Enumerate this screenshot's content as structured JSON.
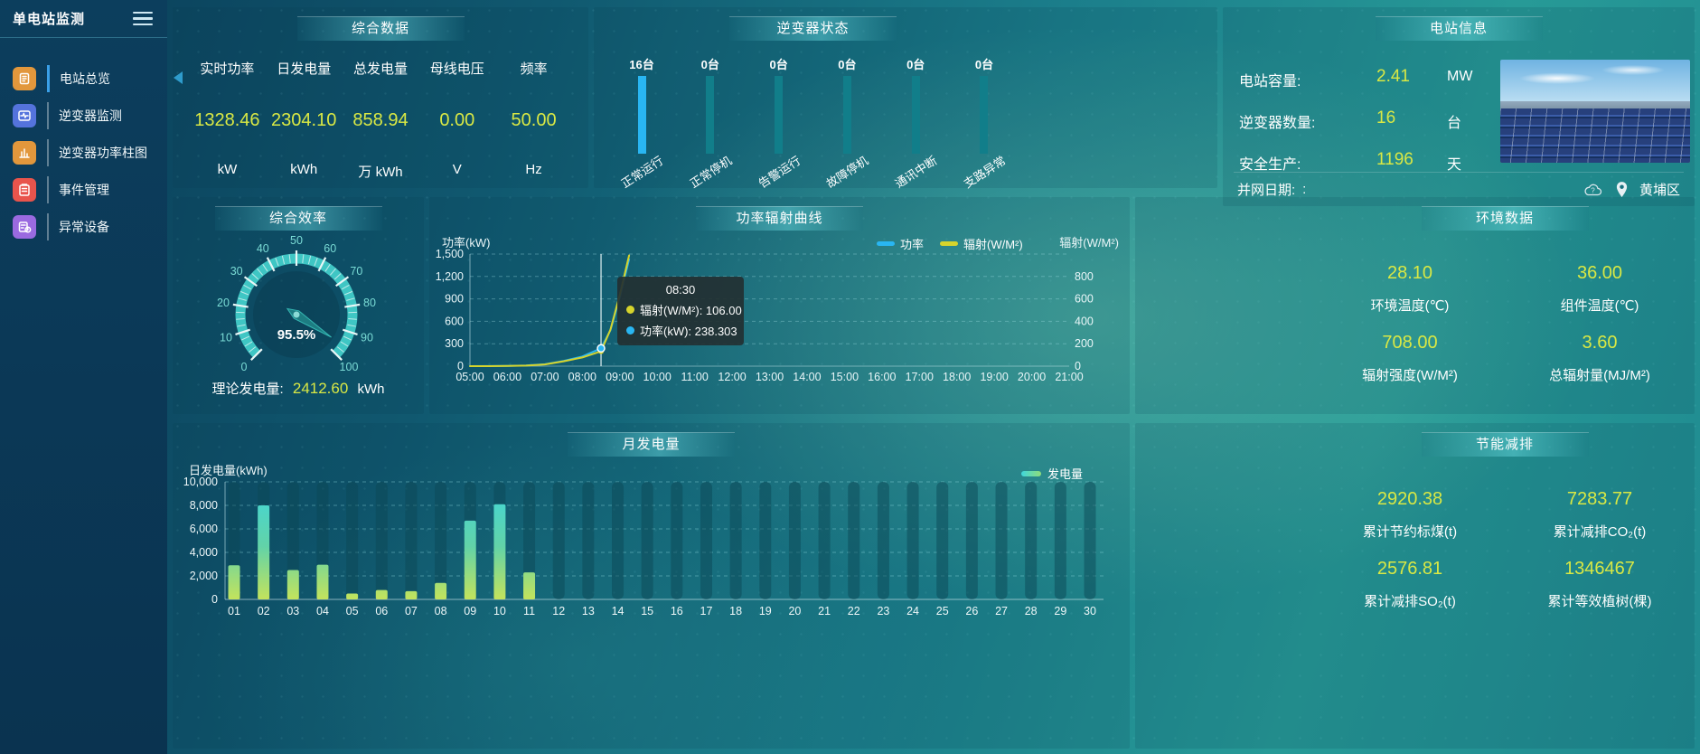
{
  "sidebar": {
    "title": "单电站监测",
    "items": [
      {
        "label": "电站总览",
        "icon": "station-overview-icon",
        "color": "#e2973c",
        "active": true
      },
      {
        "label": "逆变器监测",
        "icon": "inverter-monitor-icon",
        "color": "#5473dc",
        "active": false
      },
      {
        "label": "逆变器功率柱图",
        "icon": "inverter-power-chart-icon",
        "color": "#e2973c",
        "active": false
      },
      {
        "label": "事件管理",
        "icon": "event-management-icon",
        "color": "#e8544c",
        "active": false
      },
      {
        "label": "异常设备",
        "icon": "abnormal-device-icon",
        "color": "#9a6ae0",
        "active": false
      }
    ]
  },
  "panels": {
    "summary": {
      "title": "综合数据",
      "stats": [
        {
          "label": "实时功率",
          "value": "1328.46",
          "unit": "kW"
        },
        {
          "label": "日发电量",
          "value": "2304.10",
          "unit": "kWh"
        },
        {
          "label": "总发电量",
          "value": "858.94",
          "unit": "万 kWh"
        },
        {
          "label": "母线电压",
          "value": "0.00",
          "unit": "V"
        },
        {
          "label": "频率",
          "value": "50.00",
          "unit": "Hz"
        }
      ]
    },
    "inverter_status": {
      "title": "逆变器状态"
    },
    "station_info": {
      "title": "电站信息",
      "rows": [
        {
          "label": "电站容量:",
          "value": "2.41",
          "unit": "MW"
        },
        {
          "label": "逆变器数量:",
          "value": "16",
          "unit": "台"
        },
        {
          "label": "安全生产:",
          "value": "1196",
          "unit": "天"
        }
      ],
      "grid_date_label": "并网日期: ",
      "grid_date_value": ":",
      "location": "黄埔区"
    },
    "efficiency": {
      "title": "综合效率",
      "footer_label": "理论发电量:",
      "footer_value": "2412.60",
      "footer_unit": "kWh"
    },
    "power_curve": {
      "title": "功率辐射曲线"
    },
    "environment": {
      "title": "环境数据",
      "stats": [
        {
          "value": "28.10",
          "label": "环境温度(℃)"
        },
        {
          "value": "36.00",
          "label": "组件温度(℃)"
        },
        {
          "value": "708.00",
          "label": "辐射强度(W/M²)"
        },
        {
          "value": "3.60",
          "label": "总辐射量(MJ/M²)"
        }
      ]
    },
    "monthly": {
      "title": "月发电量"
    },
    "energy_saving": {
      "title": "节能减排",
      "stats": [
        {
          "value": "2920.38",
          "label": "累计节约标煤(t)"
        },
        {
          "value": "7283.77",
          "label": "累计减排CO₂(t)"
        },
        {
          "value": "2576.81",
          "label": "累计减排SO₂(t)"
        },
        {
          "value": "1346467",
          "label": "累计等效植树(棵)"
        }
      ]
    }
  },
  "colors": {
    "accent_yellow": "#d9e844",
    "accent_cyan": "#29b6f2",
    "teal_bar": "#117e8a",
    "gauge_teal": "#3fc6c4"
  },
  "chart_data": [
    {
      "id": "inverter_status",
      "type": "bar",
      "title": "逆变器状态",
      "categories": [
        "正常运行",
        "正常停机",
        "告警运行",
        "故障停机",
        "通讯中断",
        "支路异常"
      ],
      "values": [
        16,
        0,
        0,
        0,
        0,
        0
      ],
      "unit": "台",
      "bar_colors": [
        "#29b6f2",
        "#117e8a",
        "#117e8a",
        "#117e8a",
        "#117e8a",
        "#117e8a"
      ],
      "note": "equal-height status columns with device counts above"
    },
    {
      "id": "efficiency_gauge",
      "type": "gauge",
      "title": "综合效率",
      "value": 95.5,
      "unit": "%",
      "min": 0,
      "max": 100,
      "tick_labels": [
        0,
        10,
        20,
        30,
        40,
        50,
        60,
        70,
        80,
        90,
        100
      ],
      "color": "#3fc6c4"
    },
    {
      "id": "power_radiation",
      "type": "line",
      "title": "功率辐射曲线",
      "x_ticks": [
        "05:00",
        "06:00",
        "07:00",
        "08:00",
        "09:00",
        "10:00",
        "11:00",
        "12:00",
        "13:00",
        "14:00",
        "15:00",
        "16:00",
        "17:00",
        "18:00",
        "19:00",
        "20:00",
        "21:00"
      ],
      "x_range": [
        5,
        21
      ],
      "y_left": {
        "label": "功率(kW)",
        "range": [
          0,
          1500
        ],
        "ticks": [
          "0",
          "300",
          "600",
          "900",
          "1,200",
          "1,500"
        ]
      },
      "y_right": {
        "label": "辐射(W/M²)",
        "range": [
          0,
          800
        ],
        "ticks": [
          "0",
          "200",
          "400",
          "600",
          "800"
        ]
      },
      "grid": "dashed horizontal",
      "series": [
        {
          "name": "功率",
          "color": "#29b6f2",
          "axis": "left",
          "points": [
            [
              5,
              0
            ],
            [
              5.5,
              1
            ],
            [
              6,
              3
            ],
            [
              6.5,
              8
            ],
            [
              7,
              25
            ],
            [
              7.5,
              70
            ],
            [
              8,
              130
            ],
            [
              8.5,
              238.303
            ],
            [
              8.75,
              480
            ],
            [
              9,
              920
            ],
            [
              9.25,
              1430
            ]
          ]
        },
        {
          "name": "辐射(W/M²)",
          "color": "#d6d42c",
          "axis": "right",
          "points": [
            [
              5,
              0
            ],
            [
              5.5,
              0
            ],
            [
              6,
              1
            ],
            [
              6.5,
              4
            ],
            [
              7,
              12
            ],
            [
              7.5,
              35
            ],
            [
              8,
              62
            ],
            [
              8.5,
              106
            ],
            [
              8.75,
              260
            ],
            [
              9,
              510
            ],
            [
              9.25,
              790
            ]
          ]
        }
      ],
      "tooltip": {
        "x": 8.5,
        "title": "08:30",
        "rows": [
          {
            "color": "#d6d42c",
            "text": "辐射(W/M²): 106.00"
          },
          {
            "color": "#29b6f2",
            "text": "功率(kW): 238.303"
          }
        ]
      }
    },
    {
      "id": "monthly_generation",
      "type": "bar",
      "title": "月发电量",
      "ylabel": "日发电量(kWh)",
      "legend": "发电量",
      "categories": [
        "01",
        "02",
        "03",
        "04",
        "05",
        "06",
        "07",
        "08",
        "09",
        "10",
        "11",
        "12",
        "13",
        "14",
        "15",
        "16",
        "17",
        "18",
        "19",
        "20",
        "21",
        "22",
        "23",
        "24",
        "25",
        "26",
        "27",
        "28",
        "29",
        "30"
      ],
      "values": [
        2900,
        8000,
        2500,
        2950,
        500,
        800,
        700,
        1400,
        6700,
        8100,
        2300,
        0,
        0,
        0,
        0,
        0,
        0,
        0,
        0,
        0,
        0,
        0,
        0,
        0,
        0,
        0,
        0,
        0,
        0,
        0
      ],
      "ylim": [
        0,
        10000
      ],
      "y_ticks": [
        "0",
        "2,000",
        "4,000",
        "6,000",
        "8,000",
        "10,000"
      ],
      "bar_gradient": [
        "#3fd6dc",
        "#c3e35c"
      ],
      "background_bars": true
    }
  ]
}
